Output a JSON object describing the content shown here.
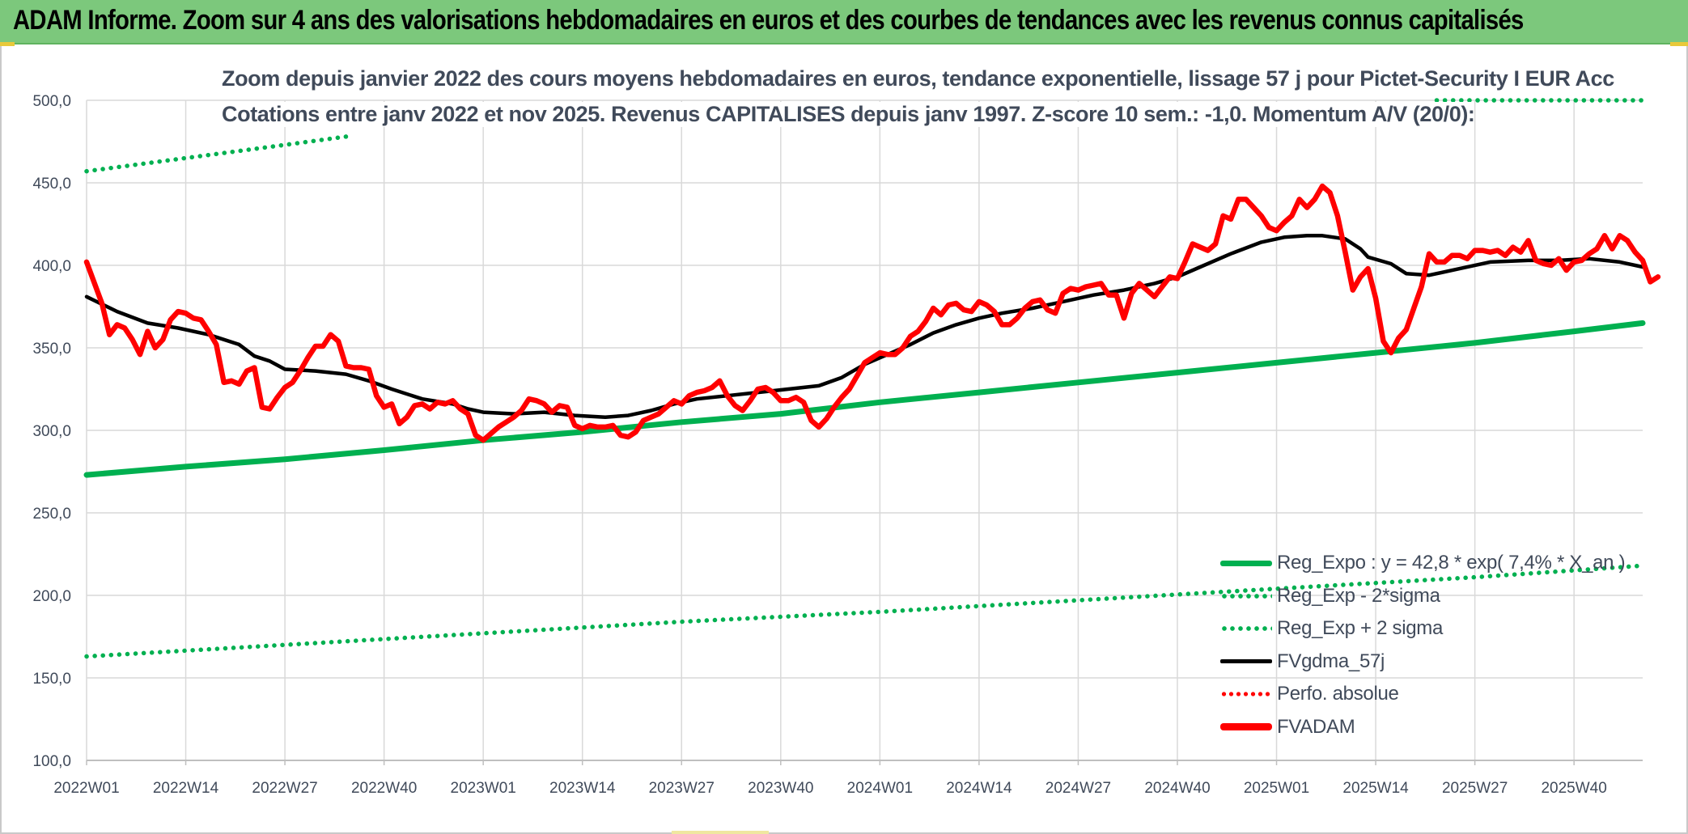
{
  "banner": {
    "title": "ADAM Informe. Zoom sur 4 ans des valorisations hebdomadaires en euros et des courbes de tendances avec les revenus connus capitalisés"
  },
  "chart_data": {
    "type": "line",
    "title_line1": "Zoom depuis janvier 2022 des cours moyens hebdomadaires en euros, tendance exponentielle, lissage 57 j pour Pictet-Security I EUR Acc",
    "title_line2": "Cotations entre janv 2022 et nov 2025. Revenus CAPITALISES depuis janv 1997. Z-score 10 sem.: -1,0. Momentum A/V (20/0):",
    "ylim": [
      100,
      500
    ],
    "y_ticks": [
      "500,0",
      "450,0",
      "400,0",
      "350,0",
      "300,0",
      "250,0",
      "200,0",
      "150,0",
      "100,0"
    ],
    "y_tick_values": [
      500,
      450,
      400,
      350,
      300,
      250,
      200,
      150,
      100
    ],
    "x_tick_labels": [
      "2022W01",
      "2022W14",
      "2022W27",
      "2022W40",
      "2023W01",
      "2023W14",
      "2023W27",
      "2023W40",
      "2024W01",
      "2024W14",
      "2024W27",
      "2024W40",
      "2025W01",
      "2025W14",
      "2025W27",
      "2025W40"
    ],
    "x_tick_weeks": [
      0,
      13,
      26,
      39,
      52,
      65,
      78,
      91,
      104,
      117,
      130,
      143,
      156,
      169,
      182,
      195
    ],
    "x_max_week": 204,
    "legend": [
      {
        "label": "Reg_Expo : y = 42,8 * exp( 7,4% * X_an )",
        "style": "solid-green"
      },
      {
        "label": "Reg_Exp - 2*sigma",
        "style": "dot-green"
      },
      {
        "label": "Reg_Exp + 2 sigma",
        "style": "dot-green"
      },
      {
        "label": "FVgdma_57j",
        "style": "solid-black"
      },
      {
        "label": "Perfo. absolue",
        "style": "dot-red"
      },
      {
        "label": "FVADAM",
        "style": "solid-red"
      }
    ],
    "colors": {
      "green": "#00b050",
      "black": "#000000",
      "red": "#ff0000",
      "grid": "#d9d9d9"
    },
    "series": [
      {
        "name": "Reg_Expo",
        "points": [
          [
            0,
            273
          ],
          [
            13,
            278
          ],
          [
            26,
            282.5
          ],
          [
            39,
            288
          ],
          [
            52,
            294
          ],
          [
            65,
            299
          ],
          [
            78,
            305
          ],
          [
            91,
            310
          ],
          [
            104,
            317
          ],
          [
            117,
            323
          ],
          [
            130,
            329
          ],
          [
            143,
            335
          ],
          [
            156,
            341
          ],
          [
            169,
            347
          ],
          [
            182,
            353
          ],
          [
            195,
            360
          ],
          [
            204,
            365
          ]
        ]
      },
      {
        "name": "Reg_Exp - 2*sigma",
        "points": [
          [
            0,
            163
          ],
          [
            26,
            170
          ],
          [
            52,
            177
          ],
          [
            78,
            184
          ],
          [
            104,
            190
          ],
          [
            130,
            197
          ],
          [
            156,
            204
          ],
          [
            182,
            211
          ],
          [
            204,
            218
          ]
        ]
      },
      {
        "name": "Reg_Exp + 2 sigma",
        "points": [
          [
            0,
            457
          ],
          [
            13,
            465
          ],
          [
            26,
            473
          ],
          [
            34,
            478
          ]
        ],
        "points_right": [
          [
            177,
            500
          ],
          [
            204,
            500
          ]
        ]
      },
      {
        "name": "FVgdma_57j",
        "points": [
          [
            0,
            381
          ],
          [
            4,
            372
          ],
          [
            8,
            365
          ],
          [
            12,
            362
          ],
          [
            16,
            358
          ],
          [
            20,
            352
          ],
          [
            22,
            345
          ],
          [
            24,
            342
          ],
          [
            26,
            337
          ],
          [
            30,
            336
          ],
          [
            34,
            334
          ],
          [
            37,
            330
          ],
          [
            40,
            325
          ],
          [
            44,
            319
          ],
          [
            48,
            316
          ],
          [
            50,
            313
          ],
          [
            52,
            311
          ],
          [
            56,
            310
          ],
          [
            60,
            311
          ],
          [
            64,
            309
          ],
          [
            68,
            308
          ],
          [
            71,
            309
          ],
          [
            74,
            312
          ],
          [
            77,
            316
          ],
          [
            80,
            319
          ],
          [
            84,
            321
          ],
          [
            88,
            323
          ],
          [
            92,
            325
          ],
          [
            96,
            327
          ],
          [
            99,
            332
          ],
          [
            102,
            340
          ],
          [
            105,
            346
          ],
          [
            108,
            352
          ],
          [
            111,
            359
          ],
          [
            114,
            364
          ],
          [
            117,
            368
          ],
          [
            120,
            371
          ],
          [
            124,
            374
          ],
          [
            128,
            378
          ],
          [
            132,
            382
          ],
          [
            136,
            385
          ],
          [
            140,
            389
          ],
          [
            143,
            393
          ],
          [
            146,
            399
          ],
          [
            150,
            407
          ],
          [
            154,
            414
          ],
          [
            157,
            417
          ],
          [
            160,
            418
          ],
          [
            162,
            418
          ],
          [
            165,
            416
          ],
          [
            167,
            410
          ],
          [
            168,
            405
          ],
          [
            171,
            401
          ],
          [
            173,
            395
          ],
          [
            176,
            394
          ],
          [
            180,
            398
          ],
          [
            184,
            402
          ],
          [
            189,
            403
          ],
          [
            193,
            403
          ],
          [
            197,
            404
          ],
          [
            201,
            402
          ],
          [
            204,
            399
          ]
        ]
      },
      {
        "name": "FVADAM",
        "points": [
          [
            0,
            402
          ],
          [
            2,
            377
          ],
          [
            3,
            358
          ],
          [
            4,
            364
          ],
          [
            5,
            362
          ],
          [
            6,
            355
          ],
          [
            7,
            346
          ],
          [
            8,
            360
          ],
          [
            9,
            350
          ],
          [
            10,
            355
          ],
          [
            11,
            367
          ],
          [
            12,
            372
          ],
          [
            13,
            371
          ],
          [
            14,
            368
          ],
          [
            15,
            367
          ],
          [
            16,
            360
          ],
          [
            17,
            352
          ],
          [
            18,
            329
          ],
          [
            19,
            330
          ],
          [
            20,
            328
          ],
          [
            21,
            336
          ],
          [
            22,
            338
          ],
          [
            23,
            314
          ],
          [
            24,
            313
          ],
          [
            25,
            320
          ],
          [
            26,
            326
          ],
          [
            27,
            329
          ],
          [
            28,
            336
          ],
          [
            29,
            344
          ],
          [
            30,
            351
          ],
          [
            31,
            351
          ],
          [
            32,
            358
          ],
          [
            33,
            354
          ],
          [
            34,
            339
          ],
          [
            35,
            338
          ],
          [
            36,
            338
          ],
          [
            37,
            337
          ],
          [
            38,
            321
          ],
          [
            39,
            314
          ],
          [
            40,
            316
          ],
          [
            41,
            304
          ],
          [
            42,
            308
          ],
          [
            43,
            315
          ],
          [
            44,
            316
          ],
          [
            45,
            313
          ],
          [
            46,
            317
          ],
          [
            47,
            316
          ],
          [
            48,
            318
          ],
          [
            49,
            313
          ],
          [
            50,
            310
          ],
          [
            51,
            297
          ],
          [
            52,
            294
          ],
          [
            53,
            298
          ],
          [
            54,
            302
          ],
          [
            55,
            305
          ],
          [
            56,
            308
          ],
          [
            57,
            312
          ],
          [
            58,
            319
          ],
          [
            59,
            318
          ],
          [
            60,
            316
          ],
          [
            61,
            311
          ],
          [
            62,
            315
          ],
          [
            63,
            314
          ],
          [
            64,
            303
          ],
          [
            65,
            301
          ],
          [
            66,
            303
          ],
          [
            67,
            302
          ],
          [
            68,
            302
          ],
          [
            69,
            303
          ],
          [
            70,
            297
          ],
          [
            71,
            296
          ],
          [
            72,
            299
          ],
          [
            73,
            306
          ],
          [
            74,
            308
          ],
          [
            75,
            310
          ],
          [
            76,
            314
          ],
          [
            77,
            318
          ],
          [
            78,
            316
          ],
          [
            79,
            321
          ],
          [
            80,
            323
          ],
          [
            81,
            324
          ],
          [
            82,
            326
          ],
          [
            83,
            330
          ],
          [
            84,
            321
          ],
          [
            85,
            315
          ],
          [
            86,
            312
          ],
          [
            87,
            318
          ],
          [
            88,
            325
          ],
          [
            89,
            326
          ],
          [
            90,
            323
          ],
          [
            91,
            318
          ],
          [
            92,
            318
          ],
          [
            93,
            320
          ],
          [
            94,
            317
          ],
          [
            95,
            306
          ],
          [
            96,
            302
          ],
          [
            97,
            307
          ],
          [
            98,
            314
          ],
          [
            99,
            320
          ],
          [
            100,
            325
          ],
          [
            101,
            333
          ],
          [
            102,
            341
          ],
          [
            103,
            344
          ],
          [
            104,
            347
          ],
          [
            105,
            346
          ],
          [
            106,
            346
          ],
          [
            107,
            350
          ],
          [
            108,
            357
          ],
          [
            109,
            360
          ],
          [
            110,
            366
          ],
          [
            111,
            374
          ],
          [
            112,
            370
          ],
          [
            113,
            376
          ],
          [
            114,
            377
          ],
          [
            115,
            373
          ],
          [
            116,
            372
          ],
          [
            117,
            378
          ],
          [
            118,
            376
          ],
          [
            119,
            372
          ],
          [
            120,
            364
          ],
          [
            121,
            364
          ],
          [
            122,
            368
          ],
          [
            123,
            374
          ],
          [
            124,
            378
          ],
          [
            125,
            379
          ],
          [
            126,
            373
          ],
          [
            127,
            371
          ],
          [
            128,
            383
          ],
          [
            129,
            386
          ],
          [
            130,
            385
          ],
          [
            131,
            387
          ],
          [
            132,
            388
          ],
          [
            133,
            389
          ],
          [
            134,
            382
          ],
          [
            135,
            382
          ],
          [
            136,
            368
          ],
          [
            137,
            383
          ],
          [
            138,
            389
          ],
          [
            139,
            385
          ],
          [
            140,
            381
          ],
          [
            141,
            387
          ],
          [
            142,
            393
          ],
          [
            143,
            392
          ],
          [
            144,
            402
          ],
          [
            145,
            413
          ],
          [
            146,
            411
          ],
          [
            147,
            409
          ],
          [
            148,
            413
          ],
          [
            149,
            430
          ],
          [
            150,
            428
          ],
          [
            151,
            440
          ],
          [
            152,
            440
          ],
          [
            153,
            435
          ],
          [
            154,
            430
          ],
          [
            155,
            423
          ],
          [
            156,
            421
          ],
          [
            157,
            426
          ],
          [
            158,
            430
          ],
          [
            159,
            440
          ],
          [
            160,
            435
          ],
          [
            161,
            440
          ],
          [
            162,
            448
          ],
          [
            163,
            444
          ],
          [
            164,
            430
          ],
          [
            165,
            408
          ],
          [
            166,
            385
          ],
          [
            167,
            393
          ],
          [
            168,
            398
          ],
          [
            169,
            380
          ],
          [
            170,
            354
          ],
          [
            171,
            347
          ],
          [
            172,
            356
          ],
          [
            173,
            361
          ],
          [
            174,
            374
          ],
          [
            175,
            387
          ],
          [
            176,
            407
          ],
          [
            177,
            402
          ],
          [
            178,
            402
          ],
          [
            179,
            406
          ],
          [
            180,
            406
          ],
          [
            181,
            404
          ],
          [
            182,
            409
          ],
          [
            183,
            409
          ],
          [
            184,
            408
          ],
          [
            185,
            409
          ],
          [
            186,
            406
          ],
          [
            187,
            411
          ],
          [
            188,
            408
          ],
          [
            189,
            415
          ],
          [
            190,
            403
          ],
          [
            191,
            401
          ],
          [
            192,
            400
          ],
          [
            193,
            404
          ],
          [
            194,
            397
          ],
          [
            195,
            402
          ],
          [
            196,
            403
          ],
          [
            197,
            407
          ],
          [
            198,
            410
          ],
          [
            199,
            418
          ],
          [
            200,
            410
          ],
          [
            201,
            418
          ],
          [
            202,
            415
          ],
          [
            203,
            408
          ],
          [
            204,
            403
          ],
          [
            205,
            390
          ],
          [
            206,
            393
          ]
        ]
      }
    ]
  }
}
